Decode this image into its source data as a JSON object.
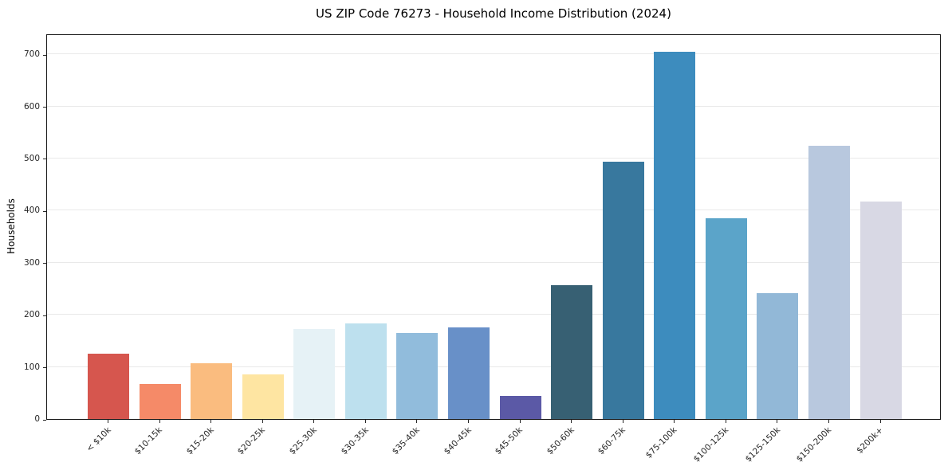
{
  "chart_data": {
    "type": "bar",
    "title": "US ZIP Code 76273 - Household Income Distribution (2024)",
    "xlabel": "",
    "ylabel": "Households",
    "categories": [
      "< $10k",
      "$10-15k",
      "$15-20k",
      "$20-25k",
      "$25-30k",
      "$30-35k",
      "$35-40k",
      "$40-45k",
      "$45-50k",
      "$50-60k",
      "$60-75k",
      "$75-100k",
      "$100-125k",
      "$125-150k",
      "$150-200k",
      "$200k+"
    ],
    "values": [
      125,
      67,
      107,
      85,
      173,
      184,
      165,
      176,
      45,
      257,
      494,
      705,
      386,
      242,
      524,
      417
    ],
    "bar_colors": [
      "#d6564e",
      "#f58a68",
      "#fabc7f",
      "#fee5a2",
      "#e6f2f6",
      "#bde0ee",
      "#91bcdc",
      "#6890c8",
      "#5b59a6",
      "#376073",
      "#38789e",
      "#3d8cbe",
      "#5ba4c9",
      "#92b8d7",
      "#b8c8de",
      "#d8d8e4"
    ],
    "yticks": [
      0,
      100,
      200,
      300,
      400,
      500,
      600,
      700
    ],
    "ylim": [
      0,
      740
    ],
    "grid": "horizontal-light",
    "legend": "none"
  },
  "colors": {
    "background": "#ffffff",
    "grid": "#e9e9e9",
    "spine": "#1a1a1a",
    "title_text": "#000000",
    "tick_text": "#262626"
  }
}
